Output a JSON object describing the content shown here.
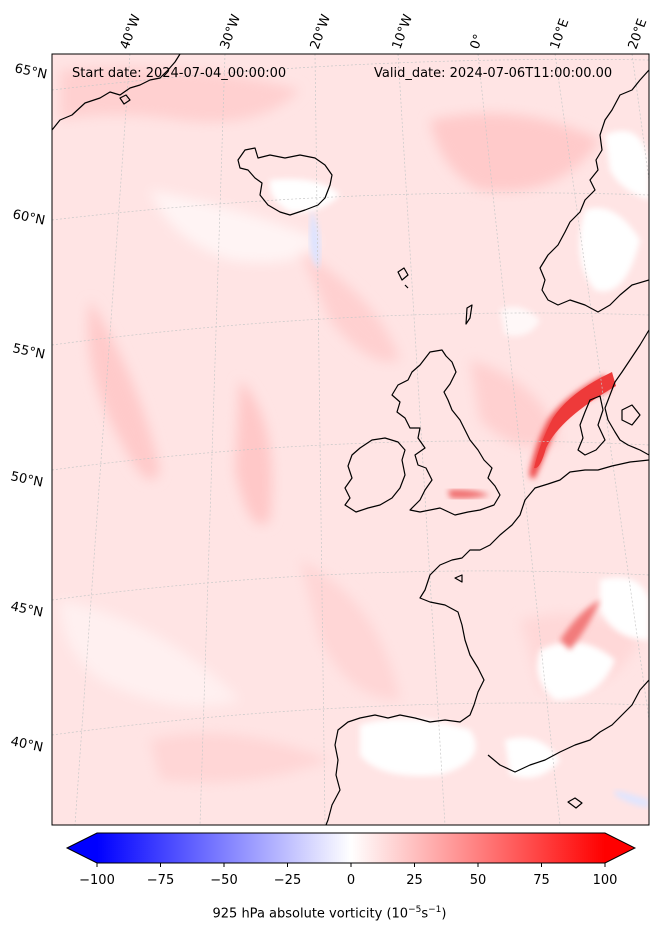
{
  "map": {
    "start_label": "Start date: 2024-07-04_00:00:00",
    "valid_label": "Valid_date: 2024-07-06T11:00:00.00",
    "lon_labels": [
      "40°W",
      "30°W",
      "20°W",
      "10°W",
      "0°",
      "10°E",
      "20°E"
    ],
    "lat_labels": [
      "65°N",
      "60°N",
      "55°N",
      "50°N",
      "45°N",
      "40°N"
    ],
    "field": "925 hPa absolute vorticity",
    "field_units": "10^-5 s^-1"
  },
  "colorbar": {
    "min": -100,
    "max": 100,
    "ticks": [
      -100,
      -75,
      -50,
      -25,
      0,
      25,
      50,
      75,
      100
    ],
    "tick_labels": [
      "−100",
      "−75",
      "−50",
      "−25",
      "0",
      "25",
      "50",
      "75",
      "100"
    ],
    "label_prefix": "925 hPa absolute vorticity (10",
    "label_exp1": "−5",
    "label_mid": "s",
    "label_exp2": "−1",
    "label_suffix": ")",
    "low_color": "#0000ff",
    "mid_color": "#ffffff",
    "high_color": "#ff0000",
    "extend": "both"
  },
  "colors": {
    "base_shade": "#ffe4e4",
    "light_shade": "#ffd2d2",
    "strong_shade": "#f25555",
    "coast": "#000000",
    "grid": "#bbbbbb"
  }
}
